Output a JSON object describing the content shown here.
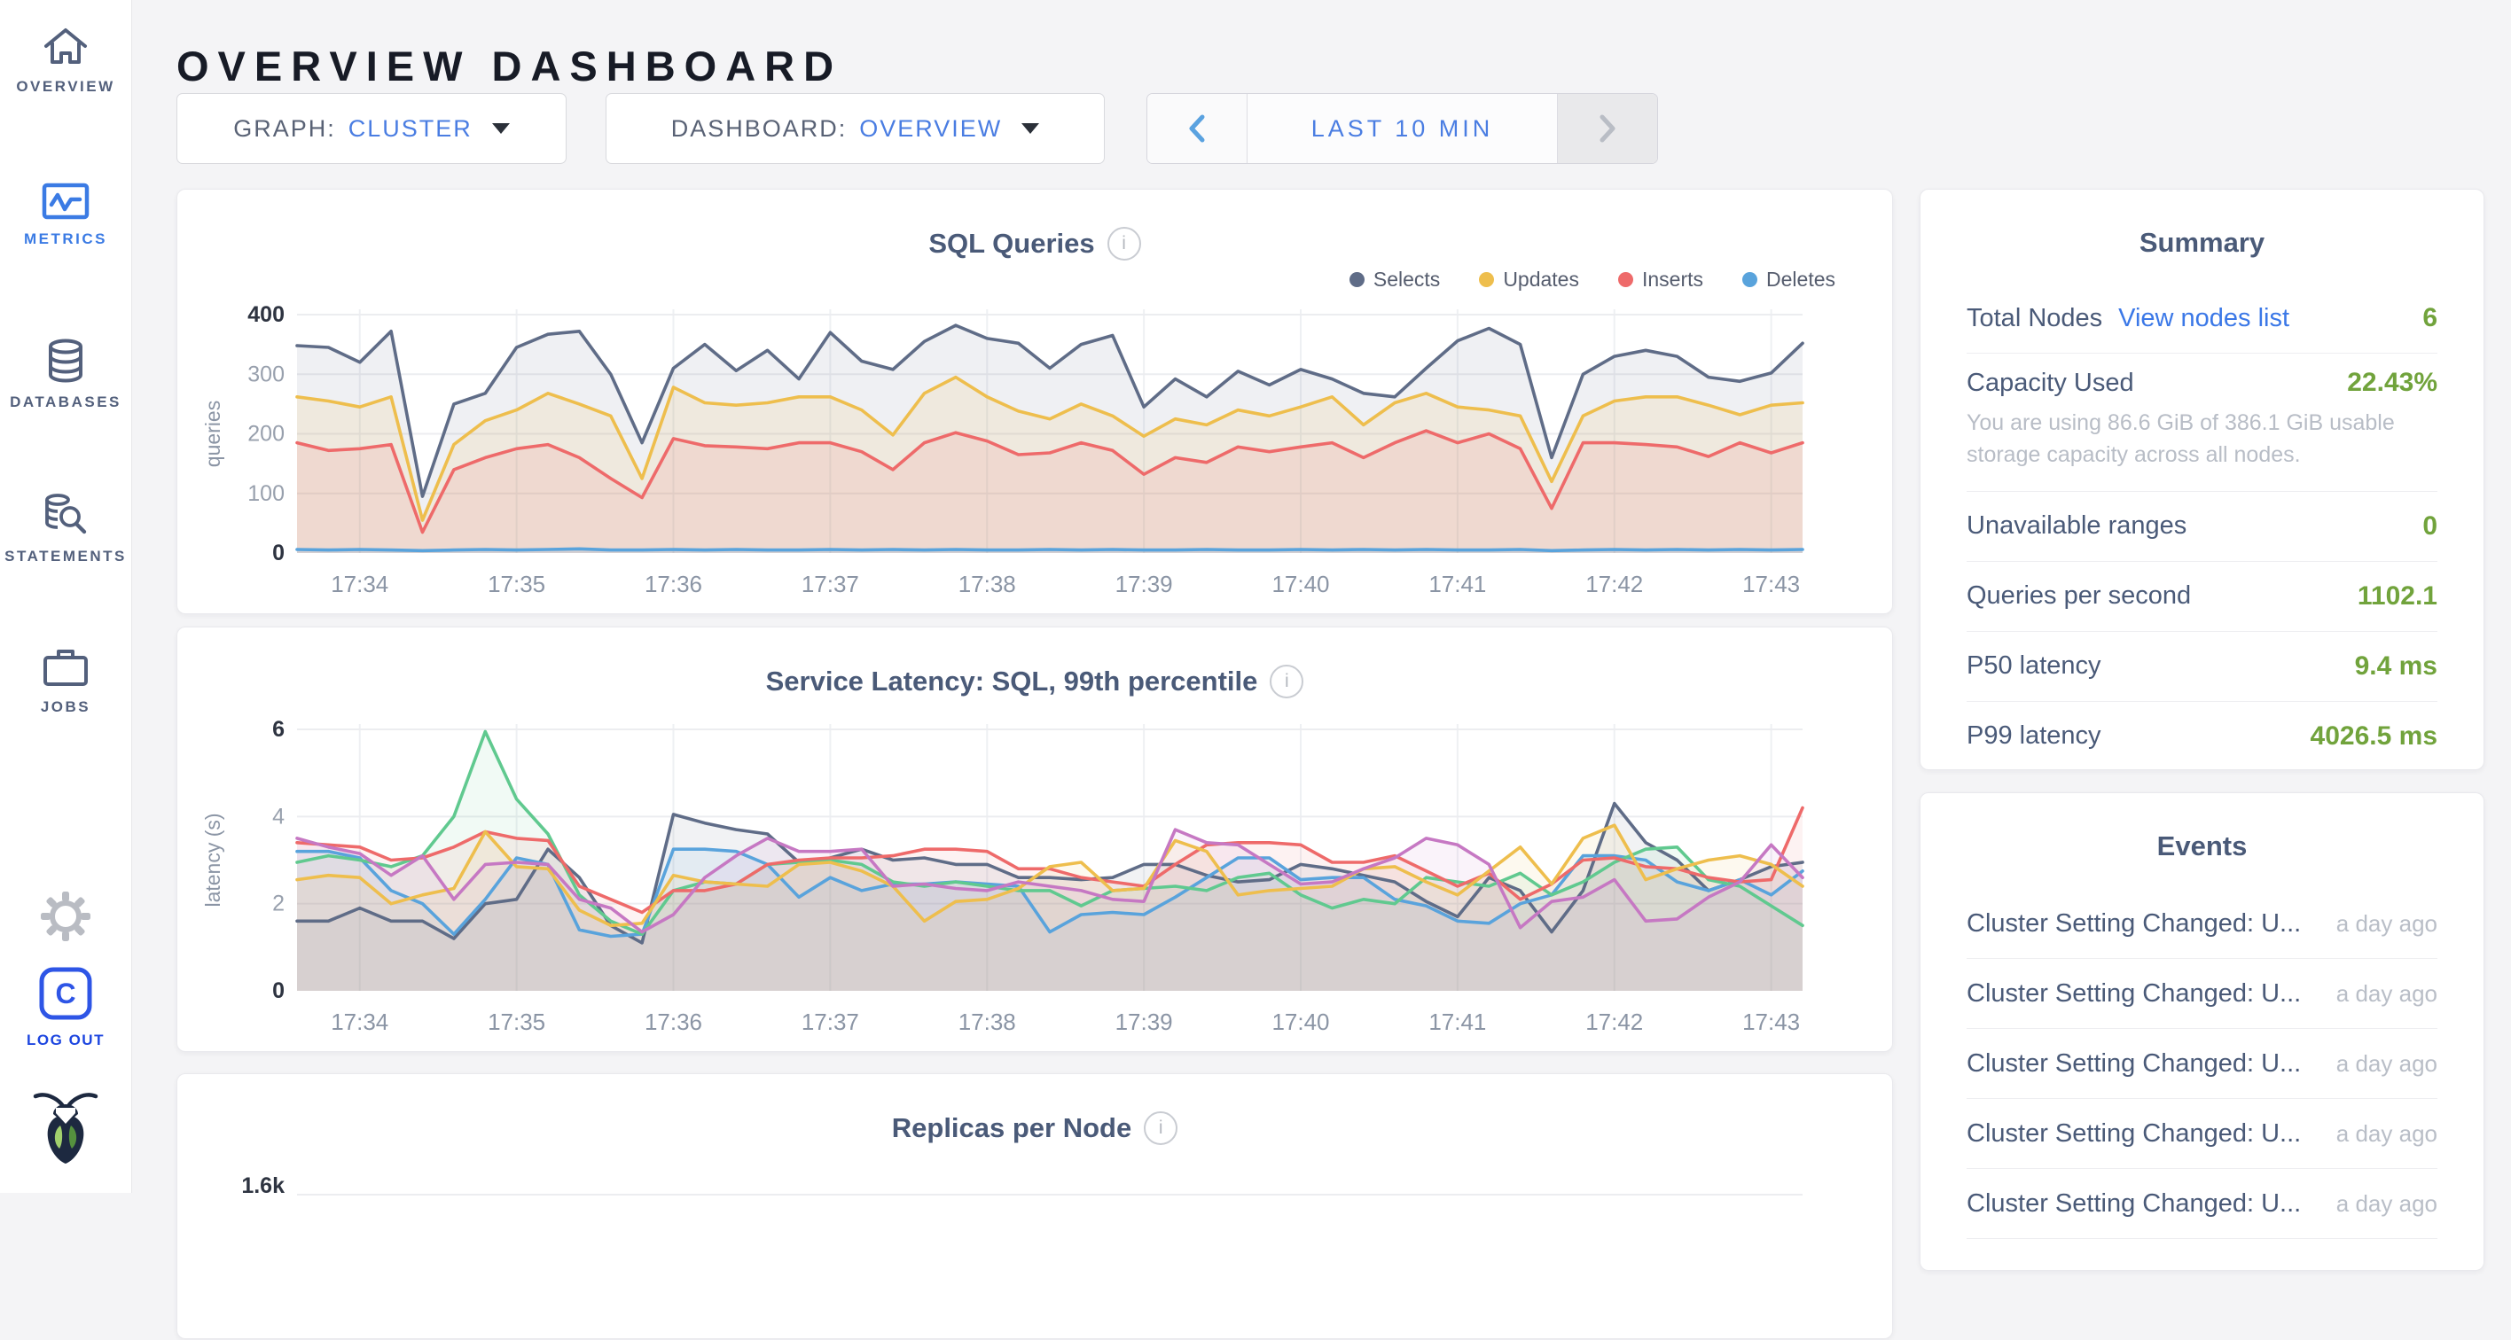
{
  "header": {
    "title": "OVERVIEW DASHBOARD"
  },
  "controls": {
    "graph": {
      "label": "GRAPH:",
      "value": "CLUSTER"
    },
    "dashboard": {
      "label": "DASHBOARD:",
      "value": "OVERVIEW"
    },
    "timerange": {
      "value": "LAST 10 MIN",
      "prev_enabled": true,
      "next_enabled": false
    }
  },
  "sidebar": {
    "items": [
      {
        "label": "OVERVIEW",
        "icon": "home-icon",
        "active": false
      },
      {
        "label": "METRICS",
        "icon": "metrics-icon",
        "active": true
      },
      {
        "label": "DATABASES",
        "icon": "databases-icon",
        "active": false
      },
      {
        "label": "STATEMENTS",
        "icon": "statements-icon",
        "active": false
      },
      {
        "label": "JOBS",
        "icon": "jobs-icon",
        "active": false
      }
    ],
    "logout_label": "LOG OUT"
  },
  "colors": {
    "accent_blue": "#3b7be4",
    "link_blue": "#3b78e7",
    "value_green": "#71a33c",
    "selects": "#5f6c87",
    "updates": "#eebe4d",
    "inserts": "#ee6a6a",
    "deletes": "#59a3dc"
  },
  "summary": {
    "title": "Summary",
    "rows": [
      {
        "label": "Total Nodes",
        "link": "View nodes list",
        "value": "6"
      },
      {
        "label": "Capacity Used",
        "value": "22.43%",
        "description": "You are using 86.6 GiB of 386.1 GiB usable storage capacity across all nodes."
      },
      {
        "label": "Unavailable ranges",
        "value": "0"
      },
      {
        "label": "Queries per second",
        "value": "1102.1"
      },
      {
        "label": "P50 latency",
        "value": "9.4 ms"
      },
      {
        "label": "P99 latency",
        "value": "4026.5 ms"
      }
    ]
  },
  "events": {
    "title": "Events",
    "items": [
      {
        "text": "Cluster Setting Changed: U...",
        "time": "a day ago"
      },
      {
        "text": "Cluster Setting Changed: U...",
        "time": "a day ago"
      },
      {
        "text": "Cluster Setting Changed: U...",
        "time": "a day ago"
      },
      {
        "text": "Cluster Setting Changed: U...",
        "time": "a day ago"
      },
      {
        "text": "Cluster Setting Changed: U...",
        "time": "a day ago"
      }
    ]
  },
  "chart_data": [
    {
      "id": "sql-queries",
      "type": "area",
      "title": "SQL Queries",
      "ylabel": "queries",
      "ylim": [
        0,
        400
      ],
      "yticks": [
        0,
        100,
        200,
        300,
        400
      ],
      "grid": true,
      "legend_position": "top-right",
      "x_tick_labels": [
        "17:34",
        "17:35",
        "17:36",
        "17:37",
        "17:38",
        "17:39",
        "17:40",
        "17:41",
        "17:42",
        "17:43"
      ],
      "tick_indices": [
        2,
        7,
        12,
        17,
        22,
        27,
        32,
        37,
        42,
        47
      ],
      "series": [
        {
          "name": "Selects",
          "color": "#5f6c87",
          "fill_alpha": 0.1,
          "values": [
            348,
            345,
            320,
            372,
            95,
            250,
            268,
            345,
            367,
            372,
            300,
            185,
            310,
            350,
            306,
            340,
            292,
            370,
            322,
            308,
            355,
            382,
            360,
            352,
            310,
            350,
            365,
            245,
            292,
            262,
            305,
            282,
            308,
            292,
            268,
            262,
            310,
            356,
            377,
            350,
            160,
            300,
            330,
            340,
            330,
            295,
            288,
            302,
            352
          ]
        },
        {
          "name": "Updates",
          "color": "#eebe4d",
          "fill_alpha": 0.12,
          "values": [
            262,
            255,
            245,
            262,
            55,
            182,
            222,
            240,
            268,
            250,
            230,
            125,
            278,
            252,
            248,
            252,
            262,
            262,
            240,
            198,
            268,
            295,
            262,
            238,
            225,
            250,
            230,
            196,
            225,
            215,
            240,
            230,
            245,
            262,
            215,
            252,
            268,
            245,
            240,
            230,
            120,
            230,
            255,
            262,
            262,
            248,
            232,
            248,
            252
          ]
        },
        {
          "name": "Inserts",
          "color": "#ee6a6a",
          "fill_alpha": 0.12,
          "values": [
            185,
            172,
            175,
            182,
            35,
            140,
            160,
            175,
            182,
            160,
            125,
            93,
            192,
            180,
            178,
            175,
            185,
            185,
            170,
            140,
            185,
            202,
            188,
            165,
            168,
            185,
            172,
            132,
            160,
            152,
            178,
            170,
            178,
            185,
            160,
            185,
            205,
            185,
            200,
            175,
            75,
            185,
            185,
            182,
            178,
            162,
            185,
            168,
            185
          ]
        },
        {
          "name": "Deletes",
          "color": "#59a3dc",
          "fill_alpha": 0.18,
          "values": [
            6,
            5,
            6,
            5,
            4,
            5,
            6,
            5,
            6,
            7,
            5,
            5,
            6,
            5,
            6,
            5,
            5,
            6,
            5,
            6,
            5,
            6,
            5,
            5,
            6,
            5,
            6,
            5,
            5,
            6,
            5,
            5,
            6,
            5,
            6,
            5,
            6,
            5,
            5,
            6,
            4,
            5,
            6,
            5,
            6,
            5,
            6,
            5,
            6
          ]
        }
      ]
    },
    {
      "id": "service-latency",
      "type": "line",
      "title": "Service Latency: SQL, 99th percentile",
      "ylabel": "latency (s)",
      "ylim": [
        0,
        6
      ],
      "yticks": [
        0,
        2,
        4,
        6
      ],
      "grid": true,
      "legend_position": "none",
      "x_tick_labels": [
        "17:34",
        "17:35",
        "17:36",
        "17:37",
        "17:38",
        "17:39",
        "17:40",
        "17:41",
        "17:42",
        "17:43"
      ],
      "tick_indices": [
        2,
        7,
        12,
        17,
        22,
        27,
        32,
        37,
        42,
        47
      ],
      "series": [
        {
          "name": "",
          "color": "#5f6c87",
          "fill_alpha": 0.09,
          "values": [
            1.6,
            1.6,
            1.9,
            1.6,
            1.6,
            1.2,
            2.0,
            2.1,
            3.25,
            2.6,
            1.5,
            1.1,
            4.05,
            3.85,
            3.7,
            3.6,
            2.95,
            3.05,
            3.25,
            3.0,
            3.05,
            2.9,
            2.9,
            2.6,
            2.6,
            2.55,
            2.6,
            2.9,
            2.9,
            2.65,
            2.5,
            2.55,
            2.9,
            2.8,
            2.65,
            2.5,
            2.05,
            1.7,
            2.6,
            2.3,
            1.35,
            2.3,
            4.3,
            3.4,
            3.0,
            2.3,
            2.55,
            2.85,
            2.95
          ]
        },
        {
          "name": "",
          "color": "#59a3dc",
          "fill_alpha": 0.09,
          "values": [
            3.2,
            3.2,
            3.05,
            2.3,
            2.0,
            1.3,
            2.1,
            3.05,
            2.9,
            1.4,
            1.25,
            1.3,
            3.25,
            3.25,
            3.2,
            2.9,
            2.15,
            2.6,
            2.3,
            2.45,
            2.45,
            2.5,
            2.45,
            2.4,
            1.35,
            1.75,
            1.8,
            1.75,
            2.15,
            2.6,
            3.05,
            3.05,
            2.55,
            2.6,
            2.6,
            2.1,
            1.95,
            1.6,
            1.55,
            2.0,
            2.2,
            3.1,
            3.1,
            3.0,
            2.5,
            2.3,
            2.55,
            2.2,
            2.75
          ]
        },
        {
          "name": "",
          "color": "#60c98f",
          "fill_alpha": 0.09,
          "values": [
            2.95,
            3.1,
            3.0,
            2.85,
            3.1,
            4.0,
            5.95,
            4.4,
            3.6,
            2.2,
            1.6,
            1.3,
            2.3,
            2.5,
            2.45,
            2.9,
            2.95,
            3.0,
            2.9,
            2.5,
            2.4,
            2.5,
            2.4,
            2.3,
            2.3,
            1.95,
            2.3,
            2.35,
            2.4,
            2.3,
            2.6,
            2.7,
            2.2,
            1.9,
            2.1,
            2.0,
            2.6,
            2.5,
            2.4,
            2.7,
            2.2,
            2.5,
            2.95,
            3.25,
            3.3,
            2.55,
            2.4,
            1.95,
            1.5
          ]
        },
        {
          "name": "",
          "color": "#ee6a6a",
          "fill_alpha": 0.09,
          "values": [
            3.4,
            3.35,
            3.3,
            3.0,
            3.05,
            3.3,
            3.65,
            3.5,
            3.45,
            2.4,
            2.1,
            1.8,
            2.3,
            2.3,
            2.45,
            2.9,
            3.0,
            3.05,
            3.05,
            3.1,
            3.25,
            3.25,
            3.2,
            2.8,
            2.8,
            2.6,
            2.5,
            2.4,
            2.9,
            3.35,
            3.4,
            3.4,
            3.35,
            2.95,
            2.95,
            3.1,
            2.75,
            2.4,
            2.7,
            2.1,
            2.45,
            3.0,
            3.05,
            2.85,
            2.8,
            2.6,
            2.5,
            2.55,
            4.2
          ]
        },
        {
          "name": "",
          "color": "#eebe4d",
          "fill_alpha": 0.09,
          "values": [
            2.55,
            2.65,
            2.6,
            2.0,
            2.2,
            2.35,
            3.65,
            2.85,
            2.8,
            1.85,
            1.5,
            1.55,
            2.65,
            2.5,
            2.45,
            2.4,
            2.9,
            2.95,
            2.75,
            2.4,
            1.6,
            2.05,
            2.1,
            2.35,
            2.85,
            2.95,
            2.3,
            2.35,
            3.45,
            3.2,
            2.2,
            2.3,
            2.35,
            2.4,
            2.8,
            2.85,
            2.5,
            2.2,
            2.75,
            3.3,
            2.45,
            3.5,
            3.8,
            2.55,
            2.8,
            3.0,
            3.1,
            2.9,
            2.4
          ]
        },
        {
          "name": "",
          "color": "#c678c3",
          "fill_alpha": 0.09,
          "values": [
            3.5,
            3.3,
            3.15,
            2.65,
            3.1,
            2.1,
            2.9,
            2.95,
            2.9,
            2.1,
            1.9,
            1.35,
            1.75,
            2.6,
            3.1,
            3.5,
            3.2,
            3.2,
            3.25,
            2.4,
            2.45,
            2.35,
            2.3,
            2.5,
            2.4,
            2.3,
            2.1,
            2.05,
            3.7,
            3.4,
            3.35,
            2.9,
            2.45,
            2.5,
            2.8,
            3.05,
            3.5,
            3.35,
            2.9,
            1.45,
            2.05,
            2.15,
            2.55,
            1.6,
            1.65,
            2.15,
            2.5,
            3.35,
            2.6
          ]
        }
      ]
    },
    {
      "id": "replicas-per-node",
      "type": "line",
      "title": "Replicas per Node",
      "partial": true,
      "visible_ytick": "1.6k"
    }
  ]
}
